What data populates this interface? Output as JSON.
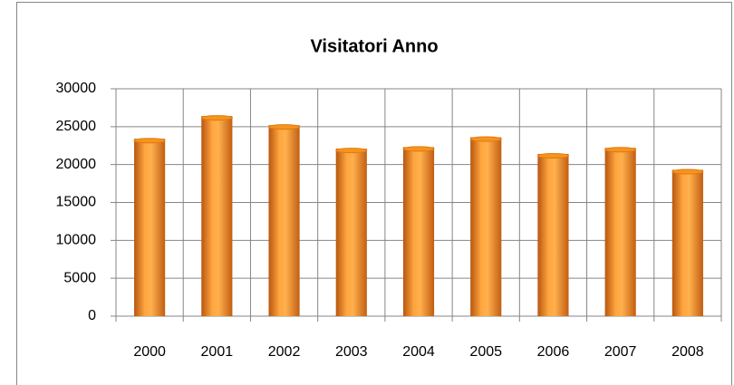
{
  "chart_data": {
    "type": "bar",
    "title": "Visitatori Anno",
    "categories": [
      "2000",
      "2001",
      "2002",
      "2003",
      "2004",
      "2005",
      "2006",
      "2007",
      "2008"
    ],
    "values": [
      23400,
      26400,
      25200,
      22100,
      22300,
      23600,
      21400,
      22200,
      19300
    ],
    "color": "#f7941d",
    "ylim": [
      0,
      30000
    ],
    "yticks": [
      0,
      5000,
      10000,
      15000,
      20000,
      25000,
      30000
    ],
    "grid": true
  }
}
